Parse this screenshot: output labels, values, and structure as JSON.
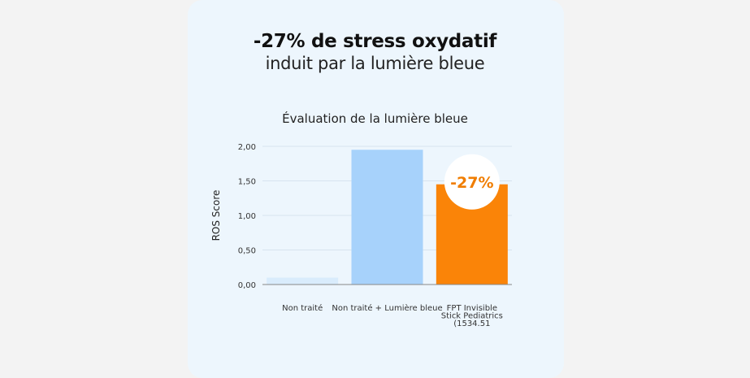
{
  "headline": "-27% de stress oxydatif",
  "subline": "induit par la lumière bleue",
  "chart_data": {
    "type": "bar",
    "title": "Évaluation de la lumière bleue",
    "ylabel": "ROS Score",
    "xlabel": "",
    "ylim": [
      0,
      2
    ],
    "yticks": [
      "0,00",
      "0,50",
      "1,00",
      "1,50",
      "2,00"
    ],
    "categories": [
      "Non traité",
      "Non traité + Lumière bleue",
      "FPT Invisible Stick Pediatrics (1534.51"
    ],
    "category_lines": [
      [
        "Non traité"
      ],
      [
        "Non traité + Lumière bleue"
      ],
      [
        "FPT Invisible",
        "Stick Pediatrics",
        "(1534.51"
      ]
    ],
    "values": [
      0.1,
      1.95,
      1.45
    ],
    "colors": [
      "#d9ecfc",
      "#a7d2fb",
      "#fa8408"
    ],
    "grid": true,
    "annotation": {
      "text": "-27%",
      "category_index": 2,
      "color": "#f07d00"
    }
  }
}
